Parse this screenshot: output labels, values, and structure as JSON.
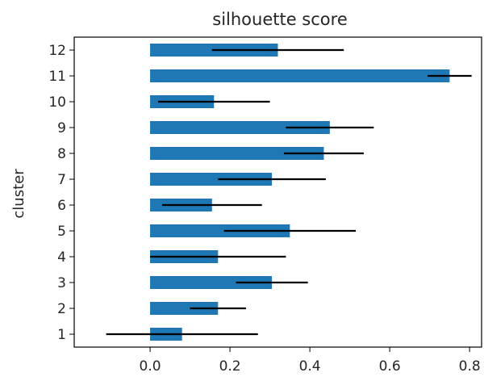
{
  "chart_data": {
    "type": "bar",
    "orientation": "horizontal",
    "title": "silhouette score",
    "xlabel": "",
    "ylabel": "cluster",
    "xlim": [
      -0.19,
      0.83
    ],
    "xticks": [
      0.0,
      0.2,
      0.4,
      0.6,
      0.8
    ],
    "xtick_labels": [
      "0.0",
      "0.2",
      "0.4",
      "0.6",
      "0.8"
    ],
    "grid": false,
    "legend": "none",
    "bar_color": "#1f77b4",
    "errorbar_color": "#000000",
    "categories": [
      "1",
      "2",
      "3",
      "4",
      "5",
      "6",
      "7",
      "8",
      "9",
      "10",
      "11",
      "12"
    ],
    "values": [
      0.08,
      0.17,
      0.305,
      0.17,
      0.35,
      0.155,
      0.305,
      0.435,
      0.45,
      0.16,
      0.75,
      0.32
    ],
    "errors": [
      0.19,
      0.07,
      0.09,
      0.17,
      0.165,
      0.125,
      0.135,
      0.1,
      0.11,
      0.14,
      0.055,
      0.165
    ]
  }
}
